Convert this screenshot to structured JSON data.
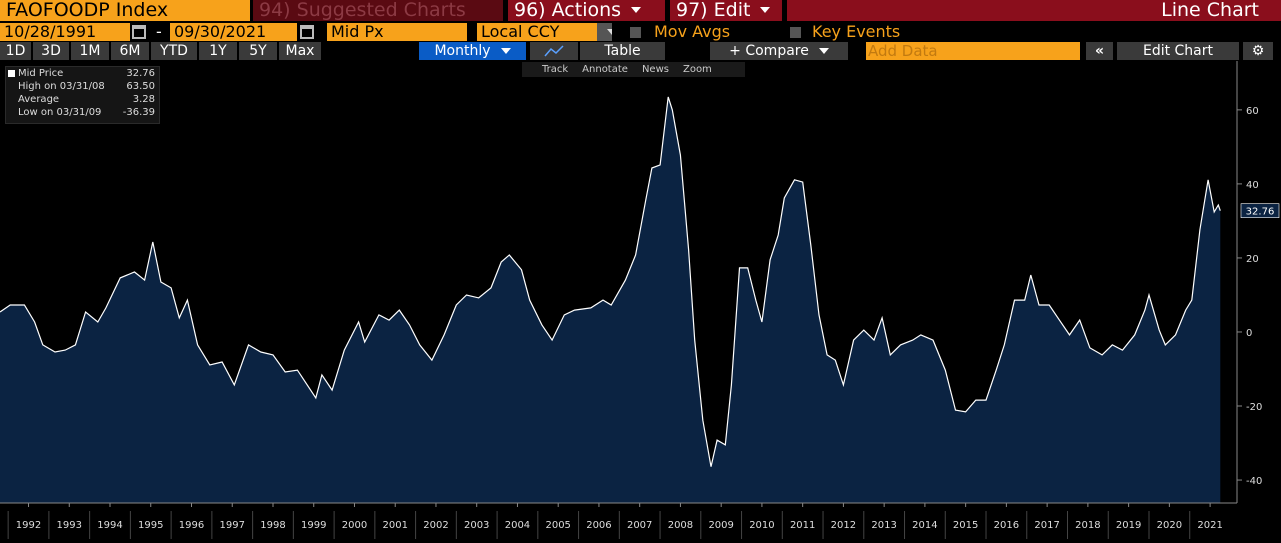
{
  "toolbar": {
    "security": "FAOFOODP Index",
    "suggested": "94) Suggested Charts",
    "actions": "96) Actions",
    "edit": "97) Edit",
    "chart_type": "Line Chart"
  },
  "settings": {
    "start_date": "10/28/1991",
    "dash": "-",
    "end_date": "09/30/2021",
    "field": "Mid Px",
    "currency": "Local CCY",
    "mov_avgs": "Mov Avgs",
    "key_events": "Key Events"
  },
  "periods": [
    "1D",
    "3D",
    "1M",
    "6M",
    "YTD",
    "1Y",
    "5Y",
    "Max"
  ],
  "controls": {
    "frequency": "Monthly",
    "table": "Table",
    "compare": "+ Compare",
    "add_data": "Add Data",
    "edit_chart": "Edit Chart"
  },
  "tools": [
    "Track",
    "Annotate",
    "News",
    "Zoom"
  ],
  "legend": [
    [
      "Mid Price",
      "32.76"
    ],
    [
      "High on 03/31/08",
      "63.50"
    ],
    [
      "Average",
      "3.28"
    ],
    [
      "Low on 03/31/09",
      "-36.39"
    ]
  ],
  "chart_data": {
    "type": "line",
    "color": "#ffffff",
    "fill": "#0b2342",
    "x": [
      1991.8,
      1992.05,
      1992.4,
      1992.65,
      1992.85,
      1993.15,
      1993.4,
      1993.65,
      1993.9,
      1994.2,
      1994.4,
      1994.75,
      1995.1,
      1995.35,
      1995.55,
      1995.75,
      1996.0,
      1996.2,
      1996.4,
      1996.65,
      1996.95,
      1997.25,
      1997.55,
      1997.9,
      1998.2,
      1998.5,
      1998.8,
      1999.1,
      1999.55,
      1999.7,
      1999.95,
      2000.25,
      2000.6,
      2000.75,
      2001.1,
      2001.35,
      2001.6,
      2001.85,
      2002.1,
      2002.4,
      2002.7,
      2003.0,
      2003.25,
      2003.55,
      2003.85,
      2004.1,
      2004.3,
      2004.6,
      2004.8,
      2005.1,
      2005.35,
      2005.65,
      2005.9,
      2006.3,
      2006.6,
      2006.8,
      2007.15,
      2007.4,
      2007.65,
      2007.8,
      2008.0,
      2008.2,
      2008.3,
      2008.5,
      2008.7,
      2008.85,
      2009.05,
      2009.25,
      2009.4,
      2009.6,
      2009.75,
      2009.95,
      2010.15,
      2010.35,
      2010.5,
      2010.7,
      2010.9,
      2011.05,
      2011.3,
      2011.5,
      2011.7,
      2011.9,
      2012.1,
      2012.3,
      2012.5,
      2012.75,
      2013.0,
      2013.25,
      2013.45,
      2013.65,
      2013.9,
      2014.2,
      2014.4,
      2014.7,
      2015.0,
      2015.25,
      2015.5,
      2015.75,
      2016.0,
      2016.25,
      2016.45,
      2016.7,
      2016.95,
      2017.1,
      2017.3,
      2017.55,
      2017.8,
      2018.05,
      2018.3,
      2018.55,
      2018.85,
      2019.1,
      2019.35,
      2019.65,
      2019.9,
      2020.0,
      2020.25,
      2020.4,
      2020.65,
      2020.9,
      2021.05,
      2021.25,
      2021.45,
      2021.6,
      2021.7,
      2021.75
    ],
    "series": [
      {
        "name": "Mid Price",
        "values": [
          5.4,
          7.3,
          7.3,
          2.7,
          -3.5,
          -5.4,
          -4.9,
          -3.5,
          5.4,
          2.7,
          6.5,
          14.6,
          16.2,
          14,
          24.3,
          13.5,
          11.9,
          3.8,
          8.6,
          -3.5,
          -8.9,
          -8.1,
          -14.3,
          -3.5,
          -5.4,
          -6.2,
          -10.8,
          -10.3,
          -17.8,
          -11.6,
          -15.7,
          -4.9,
          2.7,
          -2.7,
          4.6,
          3.2,
          5.9,
          1.9,
          -3.5,
          -7.6,
          -0.8,
          7.3,
          10,
          9.2,
          11.9,
          18.9,
          20.8,
          16.8,
          8.6,
          1.9,
          -2.2,
          4.6,
          5.9,
          6.5,
          8.6,
          7.3,
          14,
          20.8,
          35.7,
          44.3,
          45.1,
          63.5,
          60,
          47.8,
          22.2,
          -2.2,
          -23.8,
          -36.39,
          -29.2,
          -30.5,
          -14.3,
          17.3,
          17.3,
          8.6,
          2.7,
          19.5,
          26.2,
          36.2,
          41.1,
          40.5,
          23.5,
          4.6,
          -6.2,
          -7.6,
          -14.3,
          -2.2,
          0.5,
          -2.2,
          3.8,
          -6.2,
          -3.5,
          -2.2,
          -0.8,
          -2.2,
          -10.3,
          -21.1,
          -21.6,
          -18.4,
          -18.4,
          -10.3,
          -3.5,
          8.6,
          8.6,
          15.4,
          7.3,
          7.3,
          3.2,
          -0.8,
          3.2,
          -4.3,
          -6.2,
          -3.5,
          -4.9,
          -0.8,
          5.9,
          10,
          0.5,
          -3.5,
          -0.8,
          5.9,
          8.6,
          27.6,
          41.1,
          32.4,
          34.3,
          32.76
        ]
      }
    ],
    "xlim": [
      1991.8,
      2022.16
    ],
    "xticks": [
      {
        "value": 1992.5,
        "label": "1992"
      },
      {
        "value": 1993.5,
        "label": "1993"
      },
      {
        "value": 1994.5,
        "label": "1994"
      },
      {
        "value": 1995.5,
        "label": "1995"
      },
      {
        "value": 1996.5,
        "label": "1996"
      },
      {
        "value": 1997.5,
        "label": "1997"
      },
      {
        "value": 1998.5,
        "label": "1998"
      },
      {
        "value": 1999.5,
        "label": "1999"
      },
      {
        "value": 2000.5,
        "label": "2000"
      },
      {
        "value": 2001.5,
        "label": "2001"
      },
      {
        "value": 2002.5,
        "label": "2002"
      },
      {
        "value": 2003.5,
        "label": "2003"
      },
      {
        "value": 2004.5,
        "label": "2004"
      },
      {
        "value": 2005.5,
        "label": "2005"
      },
      {
        "value": 2006.5,
        "label": "2006"
      },
      {
        "value": 2007.5,
        "label": "2007"
      },
      {
        "value": 2008.5,
        "label": "2008"
      },
      {
        "value": 2009.5,
        "label": "2009"
      },
      {
        "value": 2010.5,
        "label": "2010"
      },
      {
        "value": 2011.5,
        "label": "2011"
      },
      {
        "value": 2012.5,
        "label": "2012"
      },
      {
        "value": 2013.5,
        "label": "2013"
      },
      {
        "value": 2014.5,
        "label": "2014"
      },
      {
        "value": 2015.5,
        "label": "2015"
      },
      {
        "value": 2016.5,
        "label": "2016"
      },
      {
        "value": 2017.5,
        "label": "2017"
      },
      {
        "value": 2018.5,
        "label": "2018"
      },
      {
        "value": 2019.5,
        "label": "2019"
      },
      {
        "value": 2020.5,
        "label": "2020"
      },
      {
        "value": 2021.5,
        "label": "2021"
      }
    ],
    "ylim": [
      -46.2,
      73.2
    ],
    "yticks": [
      -40,
      -20,
      0,
      20,
      40,
      60
    ]
  }
}
